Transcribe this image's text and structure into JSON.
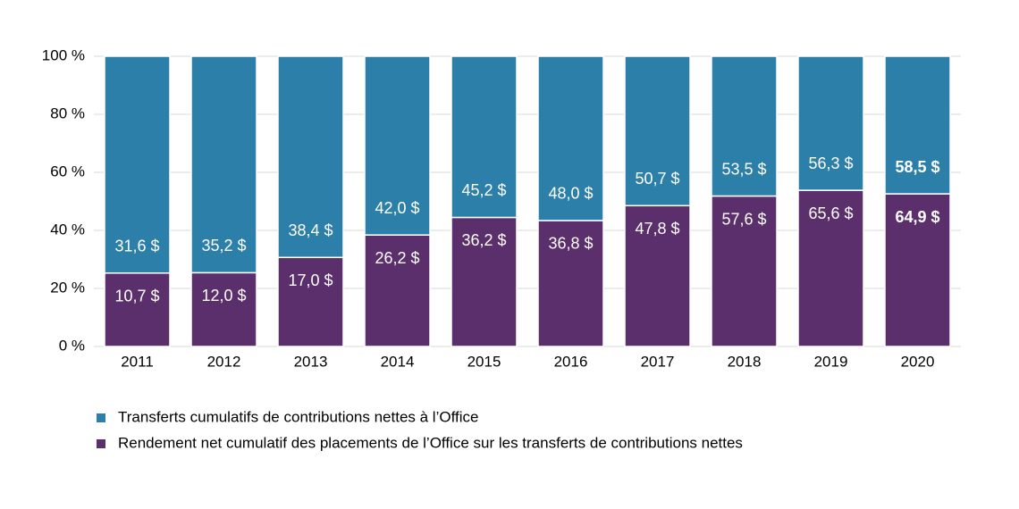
{
  "chart_data": {
    "type": "bar",
    "stacking": "percent",
    "categories": [
      "2011",
      "2012",
      "2013",
      "2014",
      "2015",
      "2016",
      "2017",
      "2018",
      "2019",
      "2020"
    ],
    "series": [
      {
        "name": "Rendement net cumulatif des placements de l’Office sur les transferts de contributions nettes",
        "color": "#5b2f6b",
        "values": [
          10.7,
          12.0,
          17.0,
          26.2,
          36.2,
          36.8,
          47.8,
          57.6,
          65.6,
          64.9
        ],
        "value_labels": [
          "10,7 $",
          "12,0 $",
          "17,0 $",
          "26,2 $",
          "36,2 $",
          "36,8 $",
          "47,8 $",
          "57,6 $",
          "65,6 $",
          "64,9 $"
        ]
      },
      {
        "name": "Transferts cumulatifs de contributions nettes à l’Office",
        "color": "#2b7fa9",
        "values": [
          31.6,
          35.2,
          38.4,
          42.0,
          45.2,
          48.0,
          50.7,
          53.5,
          56.3,
          58.5
        ],
        "value_labels": [
          "31,6 $",
          "35,2 $",
          "38,4 $",
          "42,0 $",
          "45,2 $",
          "48,0 $",
          "50,7 $",
          "53,5 $",
          "56,3 $",
          "58,5 $"
        ]
      }
    ],
    "ylim": [
      0,
      100
    ],
    "yticks": [
      {
        "value": 0,
        "label": "0 %"
      },
      {
        "value": 20,
        "label": "20 %"
      },
      {
        "value": 40,
        "label": "40 %"
      },
      {
        "value": 60,
        "label": "60 %"
      },
      {
        "value": 80,
        "label": "80 %"
      },
      {
        "value": 100,
        "label": "100 %"
      }
    ],
    "grid": true
  }
}
